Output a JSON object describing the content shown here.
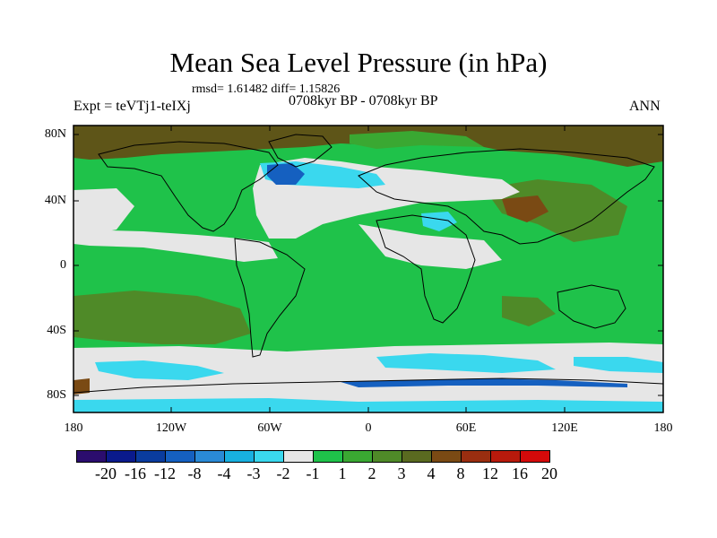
{
  "title": "Mean Sea Level Pressure (in hPa)",
  "stats": "rmsd= 1.61482 diff= 1.15826",
  "left_label": "Expt = teVTj1-teIXj",
  "center_label": "0708kyr BP - 0708kyr BP",
  "right_label": "ANN",
  "y_ticks": [
    "80N",
    "40N",
    "0",
    "40S",
    "80S"
  ],
  "x_ticks": [
    "180",
    "120W",
    "60W",
    "0",
    "60E",
    "120E",
    "180"
  ],
  "colorbar": {
    "colors": [
      "#2b0d6e",
      "#0a1a8c",
      "#0a3c9e",
      "#1560c0",
      "#2a8ad6",
      "#18b0e0",
      "#3ad8ee",
      "#e6e6e6",
      "#1fc24a",
      "#3aa832",
      "#4f8a28",
      "#5a6a20",
      "#7a4a14",
      "#9a2e10",
      "#b81a0c",
      "#d40a0a"
    ],
    "labels": [
      "-20",
      "-16",
      "-12",
      "-8",
      "-4",
      "-3",
      "-2",
      "-1",
      "1",
      "2",
      "3",
      "4",
      "8",
      "12",
      "16",
      "20"
    ]
  },
  "palette": {
    "polar_brown": "#5e5518",
    "green_3": "#3aa832",
    "dark_green": "#3f8a2c",
    "light_grey": "#e6e6e6",
    "cyan": "#3ad8ee",
    "blue": "#1560c0",
    "brown_red": "#7a4a14"
  }
}
